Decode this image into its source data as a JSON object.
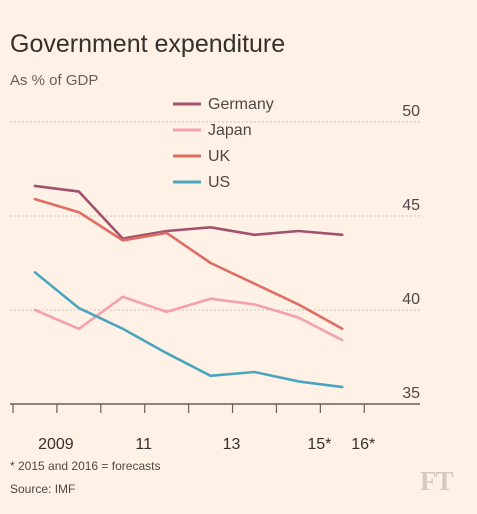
{
  "chart_data": {
    "type": "line",
    "title": "Government expenditure",
    "subtitle": "As % of GDP",
    "x": [
      2008.5,
      2009.5,
      2010.5,
      2011.5,
      2012.5,
      2013.5,
      2014.5,
      2015.5
    ],
    "x_ticks": [
      2008,
      2009,
      2010,
      2011,
      2012,
      2013,
      2014,
      2015,
      2016
    ],
    "x_tick_labels": [
      {
        "year": 2009,
        "label": "2009"
      },
      {
        "year": 2011,
        "label": "11"
      },
      {
        "year": 2013,
        "label": "13"
      },
      {
        "year": 2015,
        "label": "15*"
      },
      {
        "year": 2016,
        "label": "16*"
      }
    ],
    "y_ticks": [
      35,
      40,
      45,
      50
    ],
    "ylim": [
      34,
      50
    ],
    "grid": "dotted horizontal at 40, 45, 50",
    "legend_position": "top-center",
    "series": [
      {
        "name": "Germany",
        "color": "#a0526e",
        "values": [
          46.6,
          46.3,
          43.8,
          44.2,
          44.4,
          44.0,
          44.2,
          44.0
        ]
      },
      {
        "name": "Japan",
        "color": "#f2a1ad",
        "values": [
          40.0,
          39.0,
          40.7,
          39.9,
          40.6,
          40.3,
          39.6,
          38.4
        ]
      },
      {
        "name": "UK",
        "color": "#e06d63",
        "values": [
          45.9,
          45.2,
          43.7,
          44.1,
          42.5,
          41.4,
          40.3,
          39.0
        ]
      },
      {
        "name": "US",
        "color": "#4aa6bf",
        "values": [
          42.0,
          40.1,
          39.0,
          37.7,
          36.5,
          36.7,
          36.2,
          35.9
        ]
      }
    ]
  },
  "footnote": "* 2015 and 2016 = forecasts",
  "source": "Source: IMF",
  "logo": "FT"
}
